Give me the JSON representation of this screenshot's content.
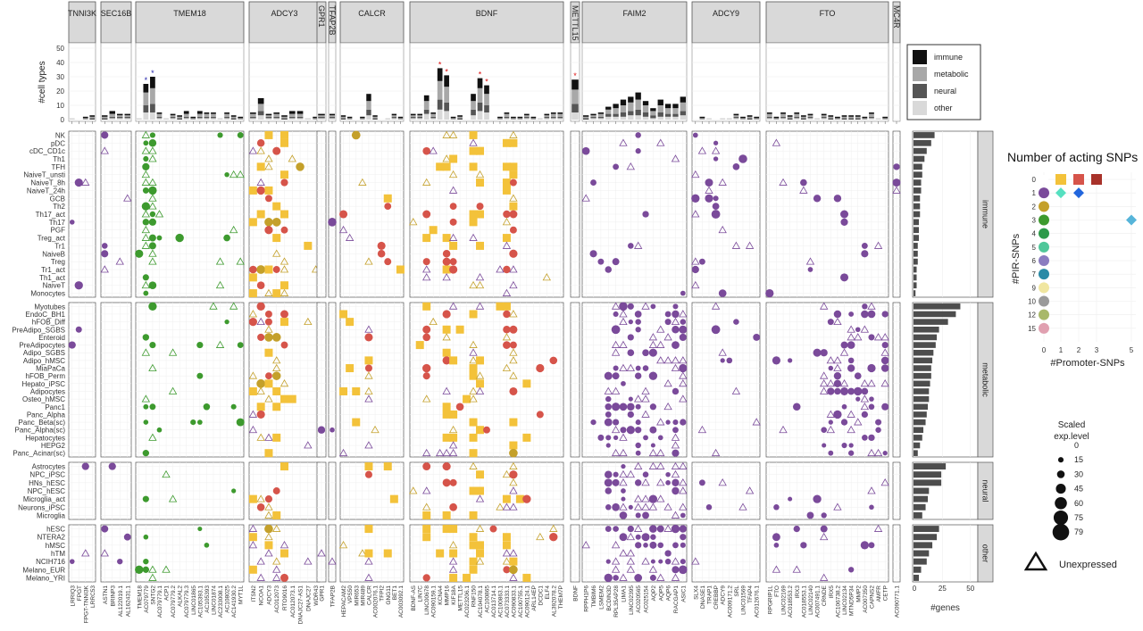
{
  "chart_data": {
    "type": "dot-matrix",
    "genes": [
      {
        "name": "TNNI3K",
        "cols": [
          "LRRIQ3",
          "FPGT",
          "FPGT-TNNI3K",
          "LRRC53"
        ]
      },
      {
        "name": "SEC16B",
        "cols": [
          "ASTN1",
          "BRINP3",
          "AL122019.1",
          "AL162431.1"
        ]
      },
      {
        "name": "TMEM18",
        "cols": [
          "TMEM18",
          "AC079779",
          "SNTG2",
          "AC079779.1",
          "ACP1",
          "AC079779.2",
          "ALKAL2",
          "AC079779.3",
          "LINC01865",
          "AC105393.1",
          "AC105393",
          "LINC01874",
          "AC233008.1",
          "AC108025",
          "AC141930.2",
          "MYT1L"
        ]
      },
      {
        "name": "ADCY3",
        "cols": [
          "ITSN2",
          "NCOA1",
          "ADCY3",
          "AC012073",
          "RTO9016",
          "AC012073.1",
          "DNAJC27-AS1",
          "DNAJC27",
          "WDR43"
        ]
      },
      {
        "name": "GPR1",
        "cols": [
          "GPR1"
        ]
      },
      {
        "name": "TFAP2B",
        "cols": [
          "TFAP2B"
        ]
      },
      {
        "name": "CALCR",
        "cols": [
          "HEPACAM2",
          "VPS50",
          "MIR653",
          "MIR489",
          "CALCR",
          "AC002076.1",
          "TFPI2",
          "GNG11",
          "BET1",
          "AC003092.1"
        ]
      },
      {
        "name": "BDNF",
        "cols": [
          "BDNF-AS",
          "LIN7C",
          "LINC00678",
          "AC090159.1",
          "KCNA4",
          "MMP16",
          "KIF18A",
          "METTL15",
          "AC023206.1",
          "RNF150",
          "AC104078.1",
          "AC100865",
          "AC013714.1",
          "AC100863.1",
          "AC073333.1",
          "AC090833.1",
          "AC100755.1",
          "AC090124.1",
          "ARL14EP",
          "DCDC1",
          "ELF4",
          "AL392078.2",
          "THEM7P"
        ]
      },
      {
        "name": "METTL15",
        "cols": [
          "BDNF"
        ]
      },
      {
        "name": "FAIM2",
        "cols": [
          "RPPH1P6",
          "TMBIM6",
          "LSMEM2",
          "BCDIN3D",
          "RPL35AP28",
          "LIMA1",
          "LINC02395",
          "AC020565",
          "AC025154",
          "AQP2",
          "AQP5",
          "AQP6",
          "RACGAP1",
          "ASIC1"
        ]
      },
      {
        "name": "ADCY9",
        "cols": [
          "SLX4",
          "DNASE1",
          "TRAP1",
          "CREBBP",
          "ADCY9",
          "AC009171.2",
          "SRL",
          "LINC01569",
          "TFAP4",
          "AC012676.1"
        ]
      },
      {
        "name": "FTO",
        "cols": [
          "RPGRIP1L",
          "FTO",
          "LINC02169",
          "AC018553.2",
          "IRX3",
          "AC018553.1",
          "LINC02140",
          "AC007491.1",
          "CRNDE",
          "IRX5",
          "AC106738.2",
          "LINC02134",
          "MTND5P34",
          "MMP2",
          "AC007350",
          "CAPNS2",
          "AMFR",
          "CETP"
        ]
      },
      {
        "name": "MC4R",
        "cols": [
          "AC090771.1"
        ]
      }
    ],
    "groups": [
      {
        "name": "immune",
        "rows": [
          "NK",
          "pDC",
          "cDC_CD1c",
          "Th1",
          "TFH",
          "NaiveT_unsti",
          "NaiveT_8h",
          "NaiveT_24h",
          "GCB",
          "Th2",
          "Th17_act",
          "Th17",
          "PGF",
          "Treg_act",
          "Tr1",
          "NaiveB",
          "Treg",
          "Tr1_act",
          "Th1_act",
          "NaiveT",
          "Monocytes"
        ],
        "gene_counts": [
          18,
          15,
          11,
          9,
          7,
          7,
          6,
          6,
          5,
          5,
          5,
          4,
          4,
          4,
          3,
          3,
          3,
          2,
          2,
          2,
          1
        ]
      },
      {
        "name": "metabolic",
        "rows": [
          "Myotubes",
          "EndoC_BH1",
          "hFOB_Diff",
          "PreAdipo_SGBS",
          "Enteroid",
          "PreAdipocytes",
          "Adipo_SGBS",
          "Adipo_hMSC",
          "MiaPaCa",
          "hFOB_Perm",
          "Hepato_iPSC",
          "Adipocytes",
          "Osteo_hMSC",
          "Panc1",
          "Panc_Alpha",
          "Panc_Beta(sc)",
          "Panc_Alpha(sc)",
          "Hepatocytes",
          "HEPG2",
          "Panc_Acinar(sc)"
        ],
        "gene_counts": [
          41,
          37,
          30,
          22,
          20,
          19,
          17,
          16,
          15,
          15,
          14,
          13,
          13,
          12,
          11,
          10,
          8,
          7,
          5,
          3
        ]
      },
      {
        "name": "neural",
        "rows": [
          "Astrocytes",
          "NPC_iPSC",
          "HNs_hESC",
          "NPC_hESC",
          "Microglia_act",
          "Neurons_iPSC",
          "Microglia"
        ],
        "gene_counts": [
          28,
          24,
          24,
          13,
          12,
          10,
          7
        ]
      },
      {
        "name": "other",
        "rows": [
          "hESC",
          "NTERA2",
          "hMSC",
          "hTM",
          "NCIH716",
          "Melano_EUR",
          "Melano_YRI"
        ],
        "gene_counts": [
          22,
          20,
          16,
          13,
          11,
          6,
          4
        ]
      }
    ],
    "top_bars": {
      "ylabel": "#cell types",
      "yticks": [
        0,
        10,
        20,
        30,
        40,
        50
      ],
      "categories": [
        "immune",
        "metabolic",
        "neural",
        "other"
      ],
      "colors": {
        "immune": "#111111",
        "metabolic": "#a8a8a8",
        "neural": "#555555",
        "other": "#d9d9d9"
      }
    },
    "right_bars": {
      "xlabel": "#genes",
      "xticks": [
        0,
        25,
        50
      ]
    },
    "shape_legend": {
      "title": "Number of acting SNPs",
      "ylabel": "#PIR-SNPs",
      "xlabel": "#Promoter-SNPs",
      "yticks": [
        "0",
        "1",
        "2",
        "3",
        "4",
        "5",
        "6",
        "7",
        "9",
        "10",
        "12",
        "15"
      ],
      "xticks": [
        "0",
        "1",
        "2",
        "3",
        "5"
      ],
      "circle_colors": [
        "#7a4a9a",
        "#c4a02a",
        "#3d9a2e",
        "#2d9a4a",
        "#4fc79a",
        "#8a7cc0",
        "#2a8aa6",
        "#f0e6a0",
        "#9a9a9a",
        "#a8b86a",
        "#e0a0b0"
      ],
      "row0_colors": [
        "#f3c23a",
        "#d6544a",
        "#a8322a"
      ],
      "row1_colors": [
        "#56e0c0",
        "#2266dd"
      ],
      "row3_col5_color": "#56b4d9"
    },
    "size_legend": {
      "title": "Scaled\nexp.level",
      "ticks": [
        "0",
        "15",
        "30",
        "45",
        "60",
        "75",
        "79"
      ]
    },
    "unexpressed_label": "Unexpressed"
  }
}
